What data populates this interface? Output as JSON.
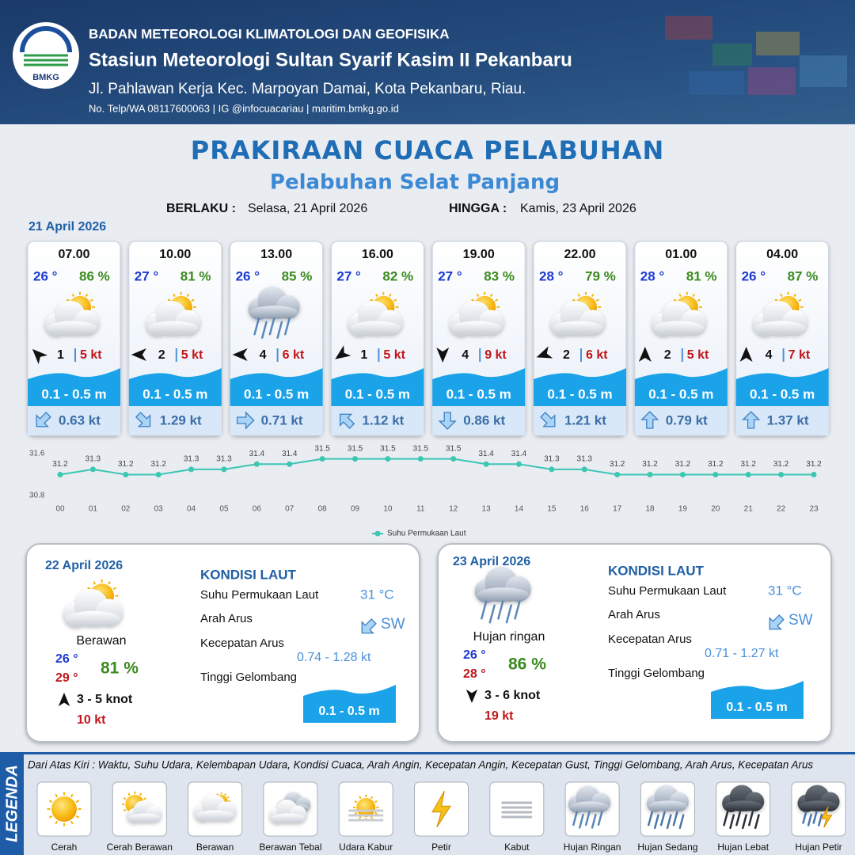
{
  "header": {
    "logo": "BMKG",
    "org": "BADAN METEOROLOGI KLIMATOLOGI DAN GEOFISIKA",
    "station": "Stasiun Meteorologi Sultan Syarif Kasim II Pekanbaru",
    "address": "Jl. Pahlawan Kerja Kec. Marpoyan Damai, Kota Pekanbaru, Riau.",
    "contact": "No. Telp/WA 08117600063 | IG @infocuacariau | maritim.bmkg.go.id"
  },
  "title": "PRAKIRAAN CUACA PELABUHAN",
  "subtitle": "Pelabuhan Selat Panjang",
  "validity": {
    "from_label": "BERLAKU :",
    "from": "Selasa, 21 April 2026",
    "to_label": "HINGGA :",
    "to": "Kamis, 23 April 2026"
  },
  "day1": {
    "date": "21 April 2026",
    "cards": [
      {
        "time": "07.00",
        "temp": "26 °",
        "humidity": "86 %",
        "wind": "1",
        "gust": "5 kt",
        "wave": "0.1 - 0.5 m",
        "current": "0.63 kt"
      },
      {
        "time": "10.00",
        "temp": "27 °",
        "humidity": "81 %",
        "wind": "2",
        "gust": "5 kt",
        "wave": "0.1 - 0.5 m",
        "current": "1.29 kt"
      },
      {
        "time": "13.00",
        "temp": "26 °",
        "humidity": "85 %",
        "wind": "4",
        "gust": "6 kt",
        "wave": "0.1 - 0.5 m",
        "current": "0.71 kt"
      },
      {
        "time": "16.00",
        "temp": "27 °",
        "humidity": "82 %",
        "wind": "1",
        "gust": "5 kt",
        "wave": "0.1 - 0.5 m",
        "current": "1.12 kt"
      },
      {
        "time": "19.00",
        "temp": "27 °",
        "humidity": "83 %",
        "wind": "4",
        "gust": "9 kt",
        "wave": "0.1 - 0.5 m",
        "current": "0.86 kt"
      },
      {
        "time": "22.00",
        "temp": "28 °",
        "humidity": "79 %",
        "wind": "2",
        "gust": "6 kt",
        "wave": "0.1 - 0.5 m",
        "current": "1.21 kt"
      },
      {
        "time": "01.00",
        "temp": "28 °",
        "humidity": "81 %",
        "wind": "2",
        "gust": "5 kt",
        "wave": "0.1 - 0.5 m",
        "current": "0.79 kt"
      },
      {
        "time": "04.00",
        "temp": "26 °",
        "humidity": "87 %",
        "wind": "4",
        "gust": "7 kt",
        "wave": "0.1 - 0.5 m",
        "current": "1.37 kt"
      }
    ]
  },
  "chart_data": {
    "type": "line",
    "categories": [
      "00",
      "01",
      "02",
      "03",
      "04",
      "05",
      "06",
      "07",
      "08",
      "09",
      "10",
      "11",
      "12",
      "13",
      "14",
      "15",
      "16",
      "17",
      "18",
      "19",
      "20",
      "21",
      "22",
      "23"
    ],
    "series": [
      {
        "name": "Suhu Permukaan Laut",
        "color": "#3cc6b4",
        "values": [
          31.2,
          31.3,
          31.2,
          31.2,
          31.3,
          31.3,
          31.4,
          31.4,
          31.5,
          31.5,
          31.5,
          31.5,
          31.5,
          31.4,
          31.4,
          31.3,
          31.3,
          31.2,
          31.2,
          31.2,
          31.2,
          31.2,
          31.2,
          31.2
        ]
      }
    ],
    "ylim": [
      30.8,
      31.6
    ],
    "yticks": [
      30.8,
      31.6
    ],
    "grid": false,
    "legend": "bottom"
  },
  "days": [
    {
      "date": "22 April 2026",
      "condition": "Berawan",
      "temp_min": "26 °",
      "temp_max": "29 °",
      "humidity": "81 %",
      "wind": "3  - 5 knot",
      "gust": "10 kt",
      "sea_title": "KONDISI LAUT",
      "sst_label": "Suhu Permukaan Laut",
      "sst": "31 °C",
      "dir_label": "Arah Arus",
      "dir": "SW",
      "speed_label": "Kecepatan Arus",
      "speed": "0.74  - 1.28 kt",
      "wave_label": "Tinggi Gelombang",
      "wave": "0.1 - 0.5 m"
    },
    {
      "date": "23 April 2026",
      "condition": "Hujan ringan",
      "temp_min": "26 °",
      "temp_max": "28 °",
      "humidity": "86 %",
      "wind": "3  - 6 knot",
      "gust": "19 kt",
      "sea_title": "KONDISI LAUT",
      "sst_label": "Suhu Permukaan Laut",
      "sst": "31 °C",
      "dir_label": "Arah Arus",
      "dir": "SW",
      "speed_label": "Kecepatan Arus",
      "speed": "0.71  - 1.27 kt",
      "wave_label": "Tinggi Gelombang",
      "wave": "0.1 - 0.5 m"
    }
  ],
  "legend": {
    "title": "LEGENDA",
    "note": "Dari Atas Kiri : Waktu, Suhu Udara, Kelembapan Udara, Kondisi Cuaca, Arah Angin, Kecepatan Angin, Kecepatan Gust, Tinggi Gelombang, Arah Arus, Kecepatan Arus",
    "items": [
      "Cerah",
      "Cerah Berawan",
      "Berawan",
      "Berawan Tebal",
      "Udara Kabur",
      "Petir",
      "Kabut",
      "Hujan Ringan",
      "Hujan Sedang",
      "Hujan Lebat",
      "Hujan Petir"
    ]
  }
}
